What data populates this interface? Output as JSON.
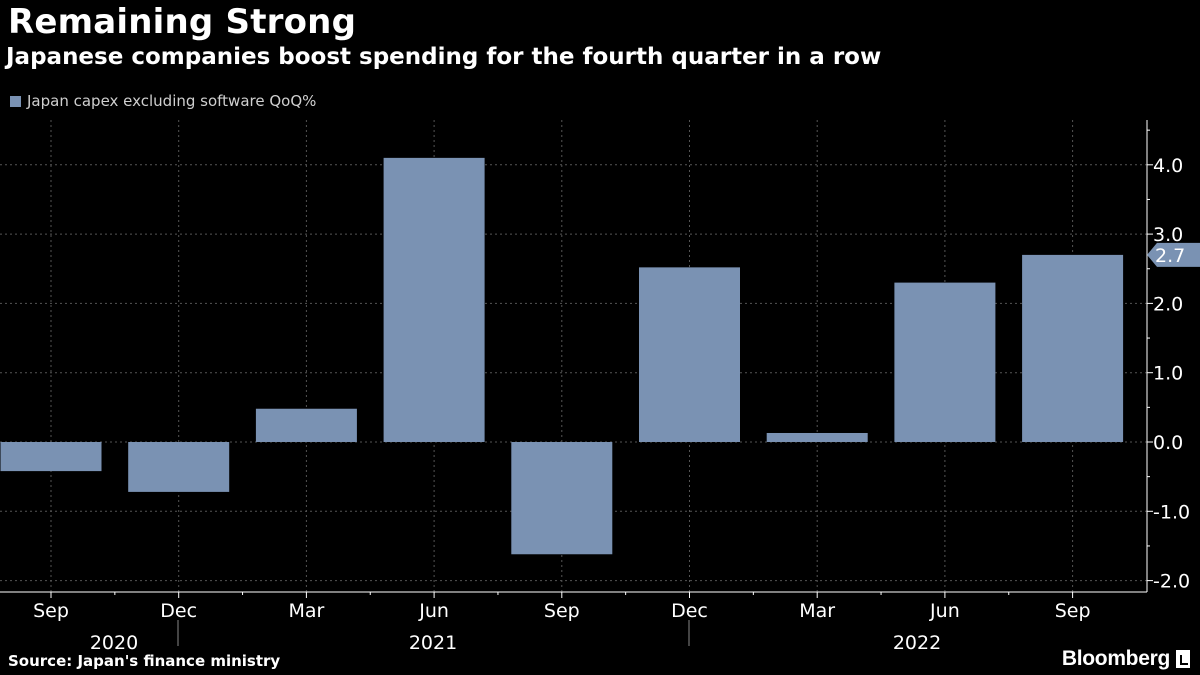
{
  "title": "Remaining Strong",
  "subtitle": "Japanese companies boost spending for the fourth quarter in a row",
  "source": "Source: Japan's finance ministry",
  "brand": "Bloomberg",
  "colors": {
    "bar": "#7a92b3",
    "grid": "#555555",
    "axis": "#ffffff",
    "background": "#000000"
  },
  "chart_data": {
    "type": "bar",
    "title": "Remaining Strong",
    "subtitle": "Japanese companies boost spending for the fourth quarter in a row",
    "categories": [
      "Sep 2020",
      "Dec 2020",
      "Mar 2021",
      "Jun 2021",
      "Sep 2021",
      "Dec 2021",
      "Mar 2022",
      "Jun 2022",
      "Sep 2022"
    ],
    "tick_labels": [
      "Sep",
      "Dec",
      "Mar",
      "Jun",
      "Sep",
      "Dec",
      "Mar",
      "Jun",
      "Sep"
    ],
    "year_labels": [
      "2020",
      "2021",
      "2022"
    ],
    "series": [
      {
        "name": "Japan capex excluding software QoQ%",
        "values": [
          -0.42,
          -0.72,
          0.48,
          4.1,
          -1.62,
          2.52,
          0.13,
          2.3,
          2.7
        ]
      }
    ],
    "ylim": [
      -2.2,
      4.6
    ],
    "yticks": [
      "-2.0",
      "-1.0",
      "0.0",
      "1.0",
      "2.0",
      "3.0",
      "4.0"
    ],
    "last_value_label": "2.7",
    "legend_position": "top-left",
    "grid": true,
    "xlabel": "",
    "ylabel": ""
  }
}
